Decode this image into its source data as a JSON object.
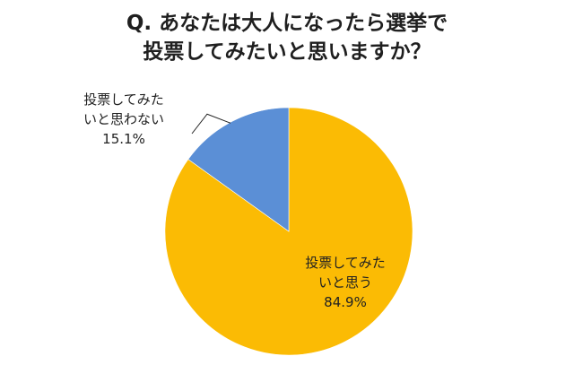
{
  "chart_data": {
    "type": "pie",
    "title_lines": [
      "Q. あなたは大人になったら選挙で",
      "投票してみたいと思いますか？"
    ],
    "slices": [
      {
        "label_lines": [
          "投票してみた",
          "いと思わない"
        ],
        "value_text": "15.1%",
        "value": 15.1,
        "color": "#5b8fd6"
      },
      {
        "label_lines": [
          "投票してみた",
          "いと思う"
        ],
        "value_text": "84.9%",
        "value": 84.9,
        "color": "#fbbb04"
      }
    ],
    "start_angle_deg": 0,
    "direction": "counterclockwise-first-slice",
    "legend": "none"
  }
}
